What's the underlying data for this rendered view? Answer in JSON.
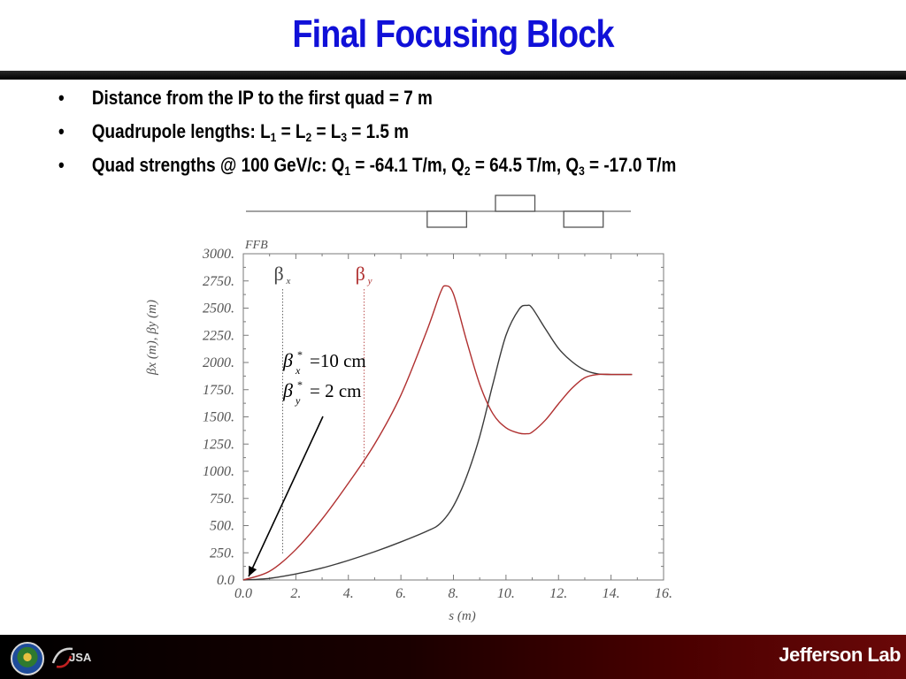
{
  "slide": {
    "title": "Final Focusing Block",
    "bullets": [
      {
        "parts": [
          {
            "t": "Distance from the IP to the first quad = 7 m"
          }
        ]
      },
      {
        "parts": [
          {
            "t": "Quadrupole lengths: L"
          },
          {
            "sub": "1"
          },
          {
            "t": " = L"
          },
          {
            "sub": "2"
          },
          {
            "t": " = L"
          },
          {
            "sub": "3"
          },
          {
            "t": " = 1.5 m"
          }
        ]
      },
      {
        "parts": [
          {
            "t": "Quad strengths @ 100 GeV/c: Q"
          },
          {
            "sub": "1"
          },
          {
            "t": " = -64.1 T/m, Q"
          },
          {
            "sub": "2"
          },
          {
            "t": " = 64.5 T/m, Q"
          },
          {
            "sub": "3"
          },
          {
            "t": " = -17.0 T/m"
          }
        ]
      }
    ]
  },
  "chart_data": {
    "type": "line",
    "corner_label": "FFB",
    "xlabel": "s (m)",
    "ylabel_main": "βx (m), βy (m)",
    "xlim": [
      0,
      16
    ],
    "ylim": [
      0,
      3000
    ],
    "x_ticks": [
      0,
      2,
      4,
      6,
      8,
      10,
      12,
      14,
      16
    ],
    "x_tick_labels": [
      "0.0",
      "2.",
      "4.",
      "6.",
      "8.",
      "10.",
      "12.",
      "14.",
      "16."
    ],
    "y_ticks": [
      0,
      250,
      500,
      750,
      1000,
      1250,
      1500,
      1750,
      2000,
      2250,
      2500,
      2750,
      3000
    ],
    "y_tick_labels": [
      "0.0",
      "250.",
      "500.",
      "750.",
      "1000.",
      "1250.",
      "1500.",
      "1750.",
      "2000.",
      "2250.",
      "2500.",
      "2750.",
      "3000."
    ],
    "series": [
      {
        "name": "βx",
        "color": "#3a3a3a",
        "x": [
          0,
          1,
          2,
          3,
          4,
          5,
          6,
          7,
          7.5,
          8,
          8.5,
          9,
          9.5,
          10,
          10.5,
          10.8,
          11,
          11.5,
          12,
          12.5,
          13,
          13.5,
          14,
          14.8
        ],
        "y": [
          0,
          15,
          55,
          110,
          180,
          260,
          350,
          450,
          520,
          680,
          950,
          1320,
          1800,
          2250,
          2490,
          2525,
          2500,
          2310,
          2130,
          2010,
          1930,
          1895,
          1890,
          1890
        ]
      },
      {
        "name": "βy",
        "color": "#b03030",
        "x": [
          0,
          1,
          2,
          3,
          4,
          5,
          6,
          7,
          7.5,
          7.7,
          8,
          8.5,
          9,
          9.5,
          10,
          10.5,
          10.8,
          11,
          11.5,
          12,
          12.5,
          13,
          13.5,
          14,
          14.8
        ],
        "y": [
          0,
          80,
          280,
          560,
          890,
          1250,
          1700,
          2300,
          2640,
          2705,
          2630,
          2200,
          1800,
          1530,
          1400,
          1350,
          1345,
          1360,
          1470,
          1620,
          1760,
          1860,
          1890,
          1890,
          1890
        ]
      }
    ],
    "legend": [
      {
        "label": "β",
        "sub": "x",
        "color": "#444444",
        "marker_s": 1.5
      },
      {
        "label": "β",
        "sub": "y",
        "color": "#b03030",
        "marker_s": 4.6
      }
    ],
    "annotation": {
      "lines": [
        {
          "beta": "β",
          "sup": "*",
          "sub": "x",
          "text": "=10 cm"
        },
        {
          "beta": "β",
          "sup": "*",
          "sub": "y",
          "text": "= 2 cm"
        }
      ],
      "arrow_to_s": 0,
      "arrow_to_beta": 0
    },
    "lattice": [
      {
        "s_start": 7.0,
        "s_end": 8.5,
        "type": "defocus"
      },
      {
        "s_start": 9.6,
        "s_end": 11.1,
        "type": "focus"
      },
      {
        "s_start": 12.2,
        "s_end": 13.7,
        "type": "defocus"
      }
    ]
  },
  "footer": {
    "logo_jsa": "JSA",
    "logo_jlab": "Jefferson Lab"
  }
}
